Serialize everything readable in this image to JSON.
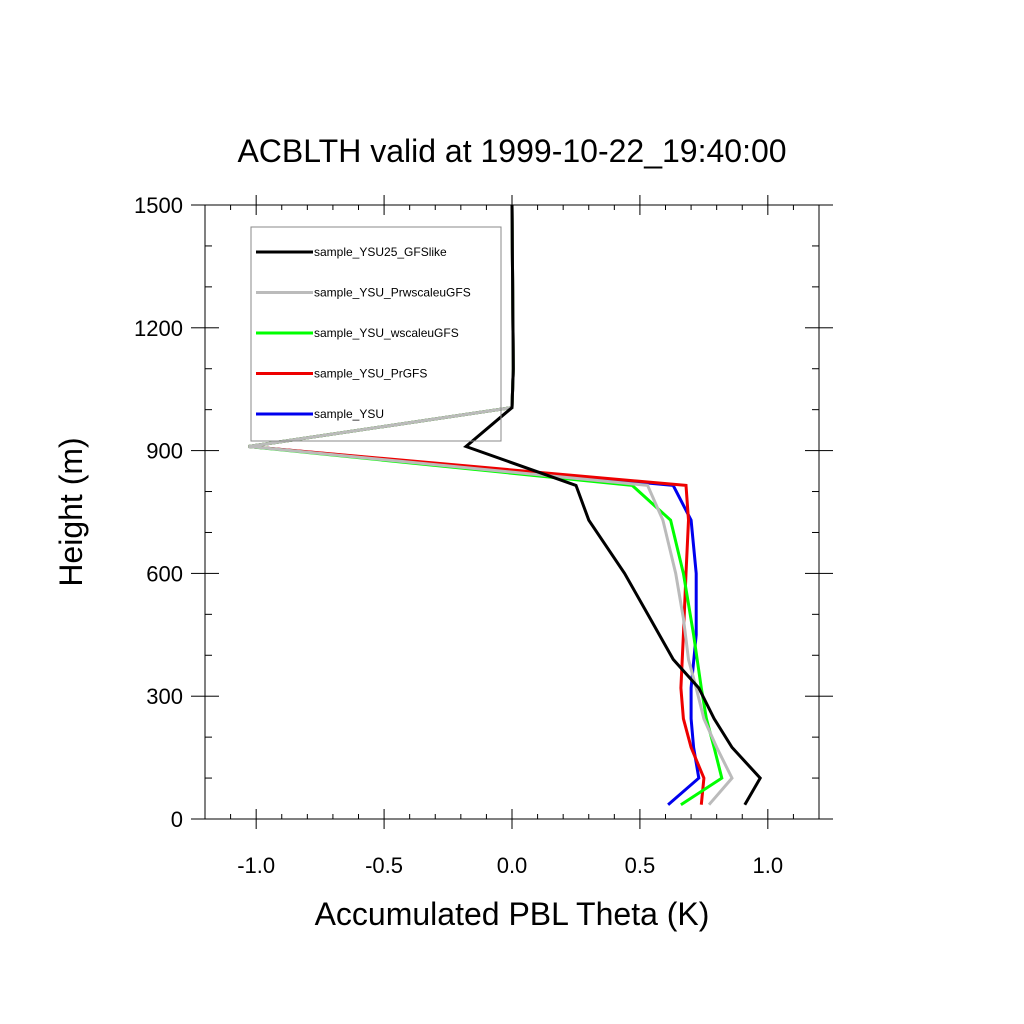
{
  "chart_data": {
    "type": "line",
    "title": "ACBLTH valid at 1999-10-22_19:40:00",
    "xlabel": "Accumulated PBL Theta (K)",
    "ylabel": "Height (m)",
    "xlim": [
      -1.2,
      1.2
    ],
    "ylim": [
      0,
      1500
    ],
    "xticks": [
      -1.0,
      -0.5,
      0.0,
      0.5,
      1.0
    ],
    "xtick_labels": [
      "-1.0",
      "-0.5",
      "0.0",
      "0.5",
      "1.0"
    ],
    "yticks": [
      0,
      300,
      600,
      900,
      1200,
      1500
    ],
    "ytick_labels": [
      "0",
      "300",
      "600",
      "900",
      "1200",
      "1500"
    ],
    "grid": false,
    "legend_position": "top-left",
    "series": [
      {
        "name": "sample_YSU25_GFSlike",
        "color": "#000000",
        "points": [
          [
            0.91,
            35
          ],
          [
            0.97,
            100
          ],
          [
            0.86,
            175
          ],
          [
            0.79,
            245
          ],
          [
            0.73,
            320
          ],
          [
            0.63,
            390
          ],
          [
            0.54,
            490
          ],
          [
            0.44,
            600
          ],
          [
            0.3,
            730
          ],
          [
            0.25,
            815
          ],
          [
            -0.18,
            910
          ],
          [
            0.0,
            1005
          ],
          [
            0.005,
            1100
          ],
          [
            0.0,
            1500
          ]
        ]
      },
      {
        "name": "sample_YSU_PrwscaleuGFS",
        "color": "#bbbbbb",
        "points": [
          [
            0.77,
            35
          ],
          [
            0.86,
            100
          ],
          [
            0.8,
            175
          ],
          [
            0.75,
            245
          ],
          [
            0.72,
            320
          ],
          [
            0.69,
            390
          ],
          [
            0.67,
            490
          ],
          [
            0.64,
            600
          ],
          [
            0.59,
            730
          ],
          [
            0.53,
            815
          ],
          [
            -1.03,
            910
          ],
          [
            0.0,
            1005
          ],
          [
            0.005,
            1100
          ],
          [
            0.0,
            1500
          ]
        ]
      },
      {
        "name": "sample_YSU_wscaleuGFS",
        "color": "#00ff00",
        "points": [
          [
            0.66,
            35
          ],
          [
            0.82,
            100
          ],
          [
            0.79,
            175
          ],
          [
            0.76,
            245
          ],
          [
            0.74,
            320
          ],
          [
            0.71,
            450
          ],
          [
            0.67,
            600
          ],
          [
            0.62,
            730
          ],
          [
            0.47,
            815
          ],
          [
            -1.03,
            910
          ],
          [
            0.0,
            1005
          ],
          [
            0.005,
            1100
          ],
          [
            0.0,
            1500
          ]
        ]
      },
      {
        "name": "sample_YSU_PrGFS",
        "color": "#ee0000",
        "points": [
          [
            0.74,
            35
          ],
          [
            0.75,
            100
          ],
          [
            0.7,
            175
          ],
          [
            0.67,
            245
          ],
          [
            0.66,
            320
          ],
          [
            0.67,
            450
          ],
          [
            0.68,
            600
          ],
          [
            0.69,
            730
          ],
          [
            0.68,
            815
          ],
          [
            -1.03,
            910
          ],
          [
            0.0,
            1005
          ],
          [
            0.005,
            1100
          ],
          [
            0.0,
            1500
          ]
        ]
      },
      {
        "name": "sample_YSU",
        "color": "#0000ee",
        "points": [
          [
            0.61,
            35
          ],
          [
            0.73,
            100
          ],
          [
            0.71,
            175
          ],
          [
            0.7,
            245
          ],
          [
            0.7,
            320
          ],
          [
            0.72,
            450
          ],
          [
            0.72,
            600
          ],
          [
            0.7,
            730
          ],
          [
            0.63,
            815
          ],
          [
            -1.03,
            910
          ],
          [
            0.0,
            1005
          ],
          [
            0.005,
            1100
          ],
          [
            0.0,
            1500
          ]
        ]
      }
    ]
  }
}
